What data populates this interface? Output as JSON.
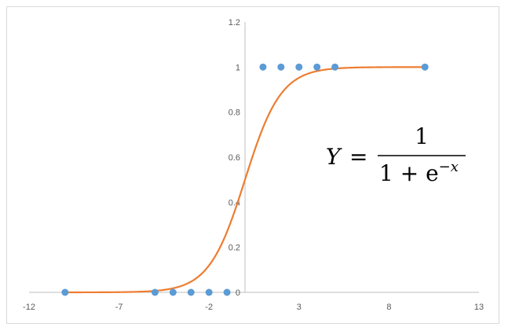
{
  "chart_data": {
    "type": "scatter",
    "title": "",
    "xlabel": "",
    "ylabel": "",
    "xlim": [
      -12,
      13
    ],
    "ylim": [
      0,
      1.2
    ],
    "x_ticks": [
      -12,
      -7,
      -2,
      3,
      8,
      13
    ],
    "y_ticks": [
      0,
      0.2,
      0.4,
      0.6,
      0.8,
      1,
      1.2
    ],
    "y_tick_labels": [
      "0",
      "0.2",
      "0.4",
      "0.6",
      "0.8",
      "1",
      "1.2"
    ],
    "grid": false,
    "series": [
      {
        "type": "scatter",
        "color": "#5b9bd5",
        "points": [
          [
            -10,
            0
          ],
          [
            -5,
            0
          ],
          [
            -4,
            0
          ],
          [
            -3,
            0
          ],
          [
            -2,
            0
          ],
          [
            -1,
            0
          ],
          [
            1,
            1
          ],
          [
            2,
            1
          ],
          [
            3,
            1
          ],
          [
            4,
            1
          ],
          [
            5,
            1
          ],
          [
            10,
            1
          ]
        ]
      },
      {
        "type": "line",
        "color": "#ed7d31",
        "function": "sigmoid",
        "x_range": [
          -10,
          10
        ]
      }
    ],
    "annotation": {
      "lhs": "Y",
      "equals": "=",
      "numerator": "1",
      "denominator_base": "1 + e",
      "denominator_exponent": "−x"
    }
  }
}
